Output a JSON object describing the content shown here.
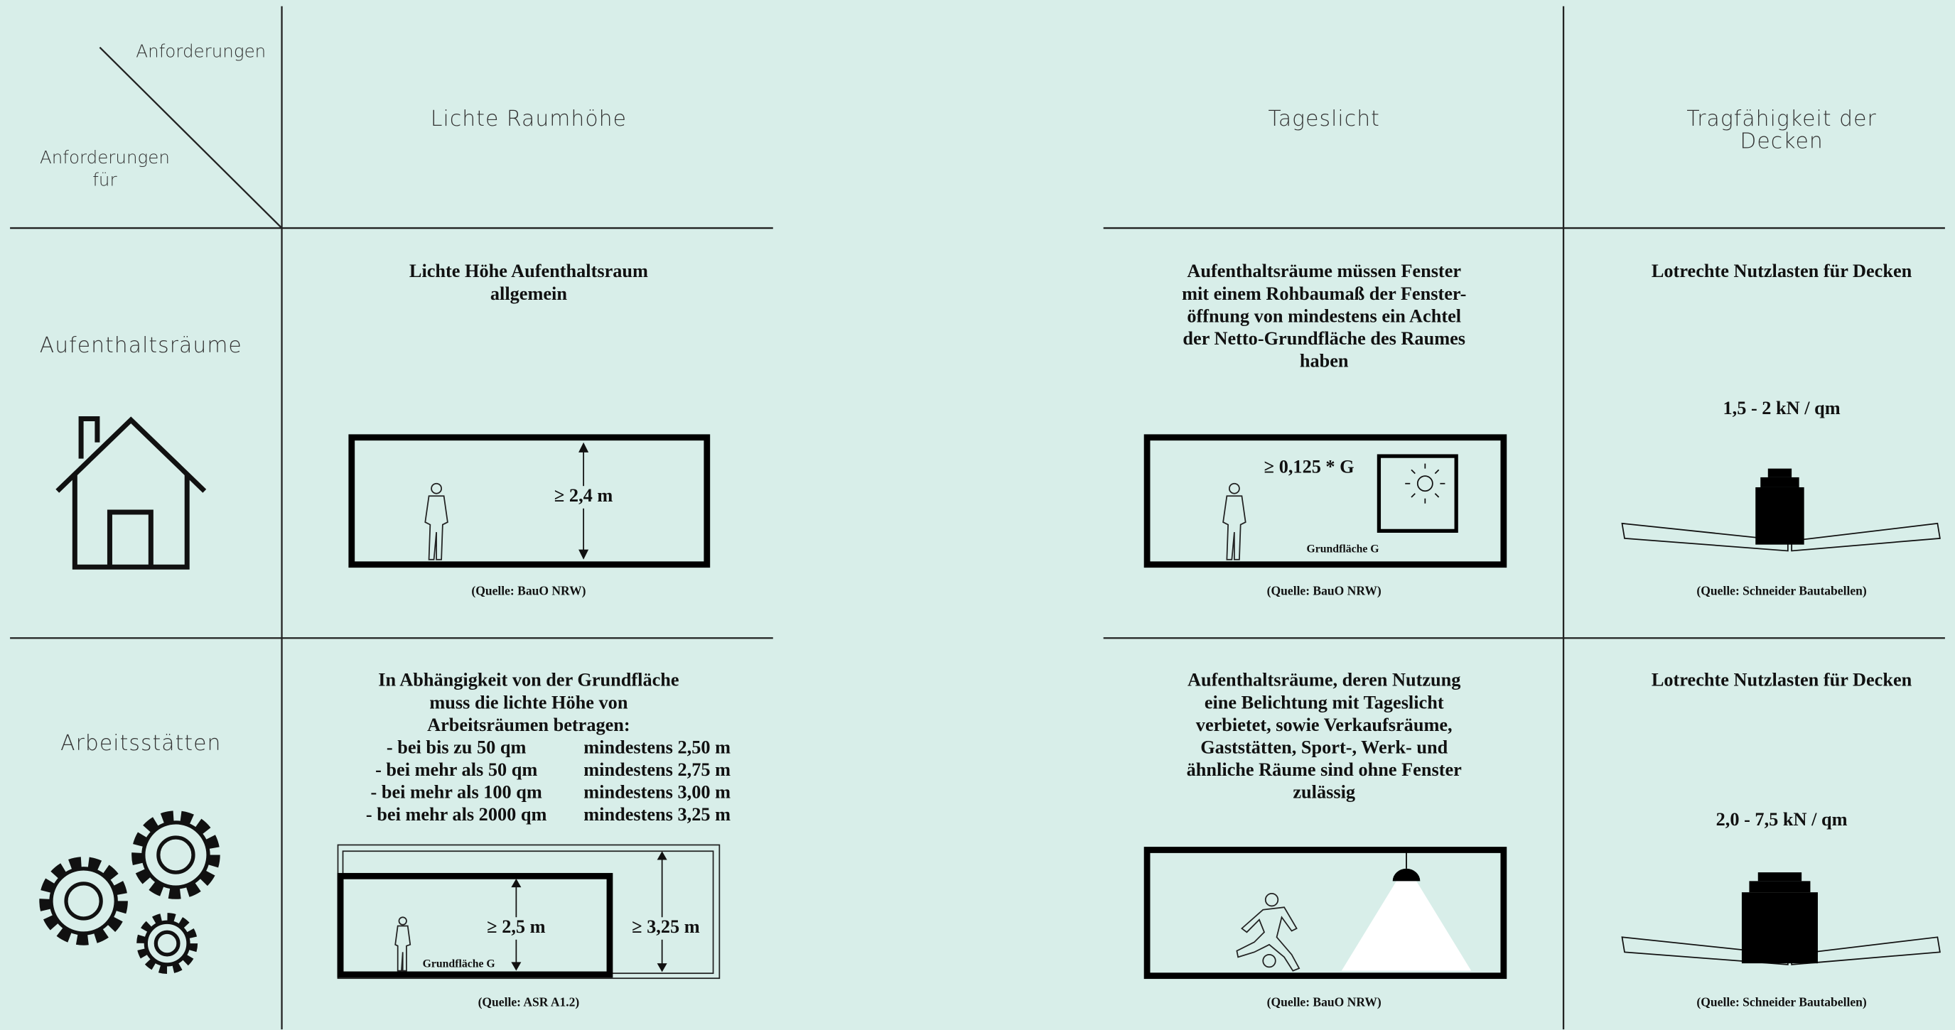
{
  "corner": {
    "top": "Anforderungen",
    "bottom": [
      "Anforderungen",
      "für"
    ]
  },
  "columns": [
    [
      "Lichte Raumhöhe"
    ],
    [
      "Tageslicht"
    ],
    [
      "Tragfähigkeit der",
      "Decken"
    ]
  ],
  "rows": [
    {
      "label": "Aufenthaltsräume",
      "cells": [
        {
          "text": [
            "Lichte Höhe Aufenthaltsraum",
            "allgemein"
          ],
          "labels": [
            "≥ 2,4 m"
          ],
          "source": "(Quelle: BauO NRW)"
        },
        {
          "text": [
            "Aufenthaltsräume müssen Fenster",
            "mit einem Rohbaumaß der Fenster-",
            "öffnung von mindestens ein Achtel",
            "der Netto-Grundfläche des Raumes",
            "haben"
          ],
          "labels": [
            "≥ 0,125 * G",
            "Grundfläche G"
          ],
          "source": "(Quelle: BauO NRW)"
        },
        {
          "text": [
            "Lotrechte Nutzlasten für Decken"
          ],
          "labels": [
            "1,5 - 2 kN / qm"
          ],
          "source": "(Quelle: Schneider Bautabellen)"
        }
      ]
    },
    {
      "label": "Arbeitsstätten",
      "cells": [
        {
          "text": [
            "In Abhängigkeit von der Grundfläche",
            "muss die lichte Höhe von",
            "Arbeitsräumen betragen:"
          ],
          "table": [
            [
              "- bei bis zu 50 qm",
              "mindestens 2,50 m"
            ],
            [
              "- bei mehr als 50 qm",
              "mindestens 2,75 m"
            ],
            [
              "- bei mehr als 100 qm",
              "mindestens 3,00 m"
            ],
            [
              "- bei mehr als 2000 qm",
              "mindestens 3,25 m"
            ]
          ],
          "labels": [
            "≥ 2,5 m",
            "≥ 3,25 m",
            "Grundfläche G"
          ],
          "source": "(Quelle: ASR A1.2)"
        },
        {
          "text": [
            "Aufenthaltsräume, deren Nutzung",
            "eine Belichtung mit Tageslicht",
            "verbietet, sowie Verkaufsräume,",
            "Gaststätten, Sport-, Werk- und",
            "ähnliche Räume sind ohne Fenster",
            "zulässig"
          ],
          "labels": [],
          "source": "(Quelle: BauO NRW)"
        },
        {
          "text": [
            "Lotrechte Nutzlasten für Decken"
          ],
          "labels": [
            "2,0 - 7,5 kN / qm"
          ],
          "source": "(Quelle: Schneider Bautabellen)"
        }
      ]
    }
  ]
}
